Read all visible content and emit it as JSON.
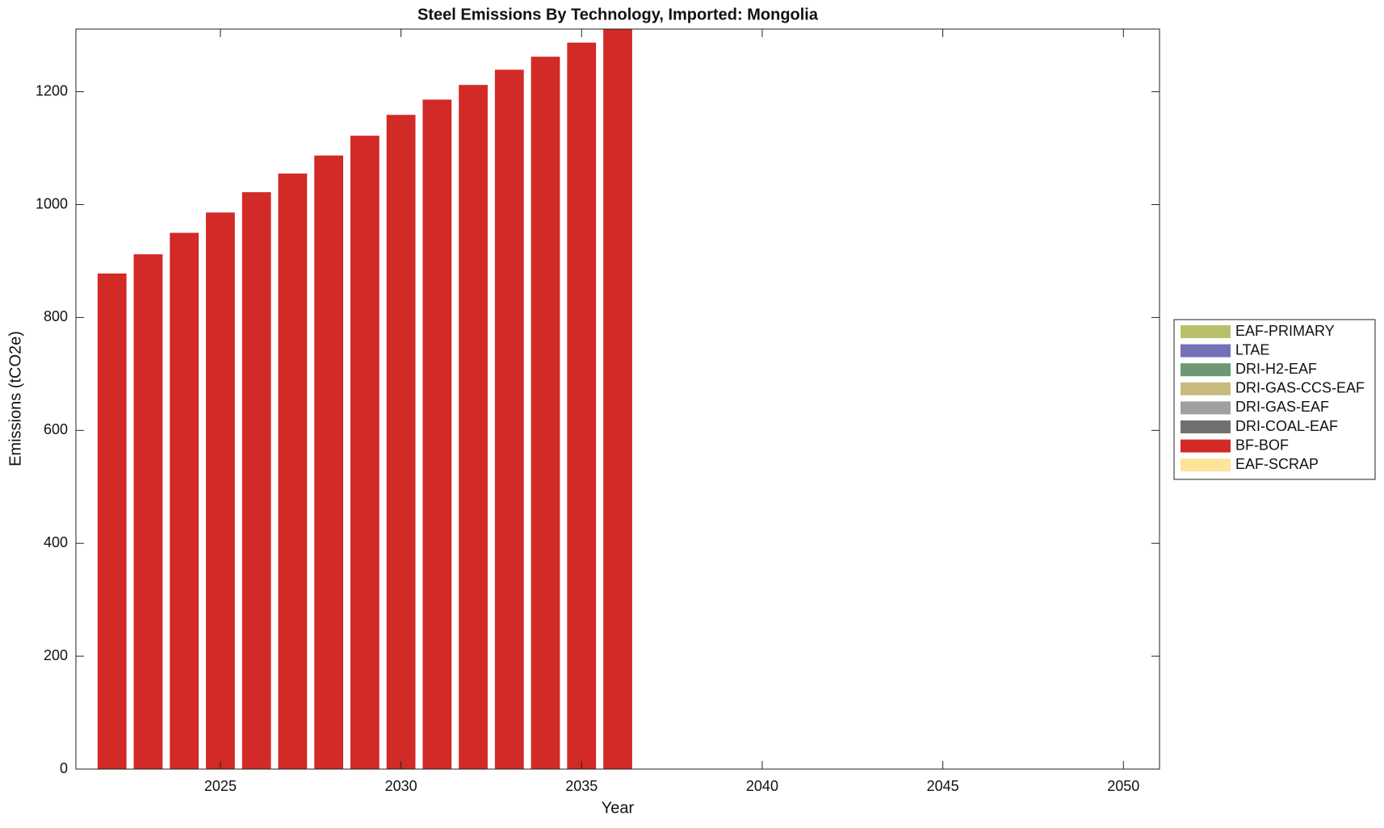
{
  "chart_data": {
    "type": "bar",
    "stacked": true,
    "title": "Steel Emissions By Technology, Imported: Mongolia",
    "x_label": "Year",
    "y_label": "Emissions (tCO2e)",
    "x": [
      2022,
      2023,
      2024,
      2025,
      2026,
      2027,
      2028,
      2029,
      2030,
      2031,
      2032,
      2033,
      2034,
      2035,
      2036
    ],
    "series": [
      {
        "name": "EAF-PRIMARY",
        "color": "#b8c16a",
        "values": [
          0,
          0,
          0,
          0,
          0,
          0,
          0,
          0,
          0,
          0,
          0,
          0,
          0,
          0,
          0
        ]
      },
      {
        "name": "LTAE",
        "color": "#7570b8",
        "values": [
          0,
          0,
          0,
          0,
          0,
          0,
          0,
          0,
          0,
          0,
          0,
          0,
          0,
          0,
          0
        ]
      },
      {
        "name": "DRI-H2-EAF",
        "color": "#6e9873",
        "values": [
          0,
          0,
          0,
          0,
          0,
          0,
          0,
          0,
          0,
          0,
          0,
          0,
          0,
          0,
          0
        ]
      },
      {
        "name": "DRI-GAS-CCS-EAF",
        "color": "#c6bb7c",
        "values": [
          0,
          0,
          0,
          0,
          0,
          0,
          0,
          0,
          0,
          0,
          0,
          0,
          0,
          0,
          0
        ]
      },
      {
        "name": "DRI-GAS-EAF",
        "color": "#a0a0a0",
        "values": [
          0,
          0,
          0,
          0,
          0,
          0,
          0,
          0,
          0,
          0,
          0,
          0,
          0,
          0,
          0
        ]
      },
      {
        "name": "DRI-COAL-EAF",
        "color": "#707070",
        "values": [
          0,
          0,
          0,
          0,
          0,
          0,
          0,
          0,
          0,
          0,
          0,
          0,
          0,
          0,
          0
        ]
      },
      {
        "name": "BF-BOF",
        "color": "#d22a26",
        "values": [
          878,
          912,
          950,
          986,
          1022,
          1055,
          1087,
          1122,
          1159,
          1186,
          1212,
          1239,
          1262,
          1287,
          1312
        ]
      },
      {
        "name": "EAF-SCRAP",
        "color": "#fde49a",
        "values": [
          0,
          0,
          0,
          0,
          0,
          0,
          0,
          0,
          0,
          0,
          0,
          0,
          0,
          0,
          0
        ]
      }
    ],
    "xlim": [
      2021,
      2051
    ],
    "xticks": [
      2025,
      2030,
      2035,
      2040,
      2045,
      2050
    ],
    "ylim": [
      0,
      1311
    ],
    "yticks": [
      0,
      200,
      400,
      600,
      800,
      1000,
      1200
    ],
    "bar_width": 0.8,
    "grid": false,
    "legend": "right"
  }
}
